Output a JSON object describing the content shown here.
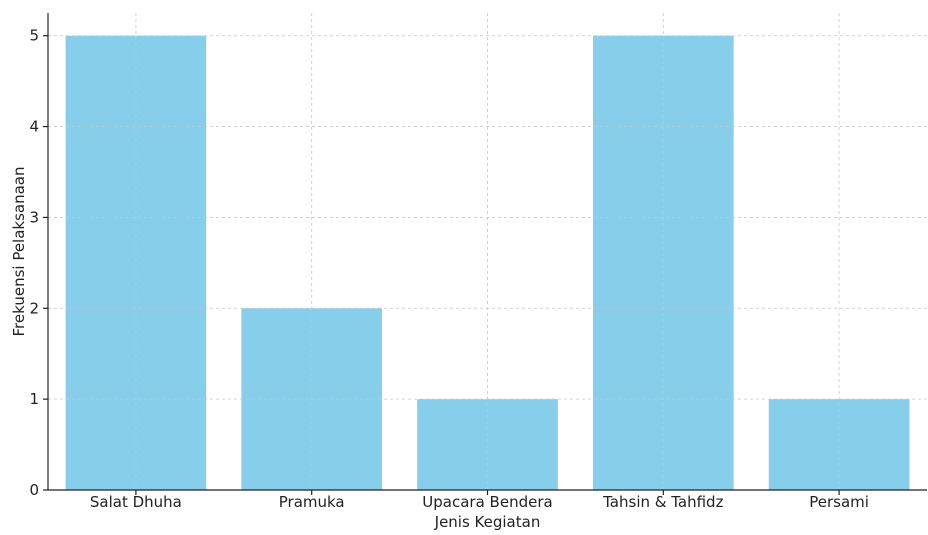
{
  "chart_data": {
    "type": "bar",
    "title": "",
    "xlabel": "Jenis Kegiatan",
    "ylabel": "Frekuensi Pelaksanaan",
    "categories": [
      "Salat Dhuha",
      "Pramuka",
      "Upacara Bendera",
      "Tahsin & Tahfidz",
      "Persami"
    ],
    "values": [
      5,
      2,
      1,
      5,
      1
    ],
    "ylim": [
      0,
      5.25
    ],
    "yticks": [
      0,
      1,
      2,
      3,
      4,
      5
    ],
    "grid": true,
    "legend": "none",
    "bar_color": "#87CEEB"
  }
}
